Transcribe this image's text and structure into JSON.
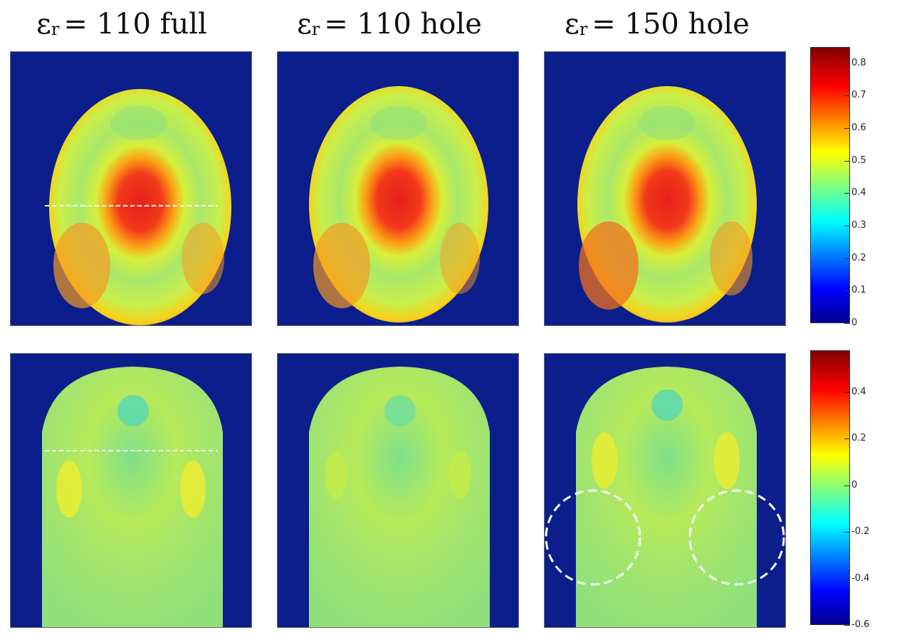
{
  "columns": [
    {
      "eps": "ε",
      "sub": "r",
      "rest": "= 110 full"
    },
    {
      "eps": "ε",
      "sub": "r",
      "rest": "= 110 hole"
    },
    {
      "eps": "ε",
      "sub": "r",
      "rest": "= 150 hole"
    }
  ],
  "colorbar_top": {
    "ticks": [
      "0.8",
      "0.7",
      "0.6",
      "0.5",
      "0.4",
      "0.3",
      "0.2",
      "0.1",
      "0"
    ],
    "range": [
      0,
      0.85
    ]
  },
  "colorbar_bottom": {
    "ticks": [
      "0.4",
      "0.2",
      "0",
      "-0.2",
      "-0.4",
      "-0.6"
    ],
    "range": [
      -0.6,
      0.58
    ]
  },
  "colors": {
    "background": "#0b1e8c",
    "colormap": "jet"
  }
}
